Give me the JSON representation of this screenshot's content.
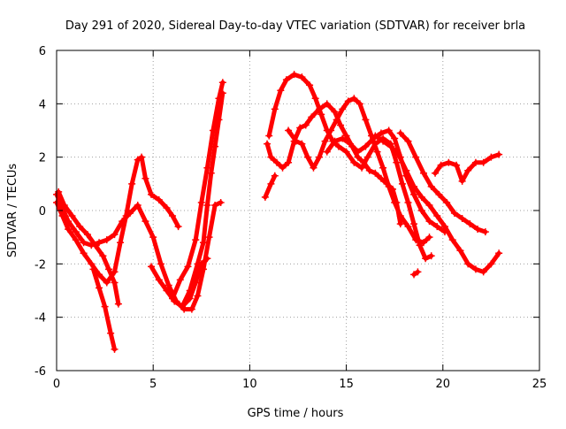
{
  "chart_data": {
    "type": "scatter",
    "title": "Day 291 of 2020, Sidereal Day-to-day VTEC variation (SDTVAR) for receiver brla",
    "xlabel": "GPS time / hours",
    "ylabel": "SDTVAR / TECUs",
    "xlim": [
      0,
      25
    ],
    "ylim": [
      -6,
      6
    ],
    "x_ticks": [
      0,
      5,
      10,
      15,
      20,
      25
    ],
    "y_ticks": [
      -6,
      -4,
      -2,
      0,
      2,
      4,
      6
    ],
    "grid": true,
    "legend": "none",
    "marker": "+",
    "series_color": "#ff0000",
    "series": [
      {
        "name": "track-1",
        "points": [
          [
            0.0,
            0.6
          ],
          [
            0.3,
            0.1
          ],
          [
            0.6,
            -0.4
          ],
          [
            1.0,
            -0.8
          ],
          [
            1.4,
            -1.2
          ],
          [
            1.8,
            -1.3
          ],
          [
            2.2,
            -1.2
          ],
          [
            2.6,
            -1.1
          ],
          [
            3.0,
            -0.9
          ],
          [
            3.4,
            -0.4
          ],
          [
            3.8,
            -0.1
          ],
          [
            4.2,
            0.2
          ],
          [
            4.6,
            -0.4
          ],
          [
            5.0,
            -1.0
          ],
          [
            5.4,
            -2.0
          ],
          [
            5.8,
            -2.8
          ],
          [
            6.2,
            -3.4
          ],
          [
            6.6,
            -3.7
          ],
          [
            7.0,
            -3.7
          ],
          [
            7.3,
            -3.2
          ],
          [
            7.6,
            -2.2
          ],
          [
            7.9,
            -1.0
          ],
          [
            8.2,
            0.2
          ],
          [
            8.5,
            0.3
          ]
        ]
      },
      {
        "name": "track-2",
        "points": [
          [
            0.0,
            0.3
          ],
          [
            0.3,
            -0.2
          ],
          [
            0.6,
            -0.7
          ],
          [
            1.0,
            -1.1
          ],
          [
            1.4,
            -1.6
          ],
          [
            1.8,
            -2.0
          ],
          [
            2.2,
            -2.4
          ],
          [
            2.6,
            -2.7
          ],
          [
            3.0,
            -2.3
          ],
          [
            3.3,
            -1.2
          ],
          [
            3.6,
            -0.2
          ],
          [
            3.9,
            1.0
          ],
          [
            4.2,
            1.9
          ],
          [
            4.4,
            2.0
          ],
          [
            4.6,
            1.2
          ],
          [
            4.9,
            0.6
          ],
          [
            5.3,
            0.4
          ],
          [
            5.7,
            0.1
          ],
          [
            6.0,
            -0.2
          ],
          [
            6.3,
            -0.6
          ]
        ]
      },
      {
        "name": "track-3",
        "points": [
          [
            0.1,
            0.7
          ],
          [
            0.4,
            0.2
          ],
          [
            0.8,
            -0.2
          ],
          [
            1.2,
            -0.6
          ],
          [
            1.6,
            -0.9
          ],
          [
            2.0,
            -1.3
          ],
          [
            2.4,
            -1.7
          ],
          [
            2.7,
            -2.2
          ],
          [
            3.0,
            -2.7
          ],
          [
            3.2,
            -3.5
          ]
        ]
      },
      {
        "name": "track-4",
        "points": [
          [
            1.9,
            -2.2
          ],
          [
            2.2,
            -2.9
          ],
          [
            2.5,
            -3.6
          ],
          [
            2.8,
            -4.6
          ],
          [
            3.0,
            -5.2
          ]
        ]
      },
      {
        "name": "track-5",
        "points": [
          [
            4.9,
            -2.1
          ],
          [
            5.3,
            -2.6
          ],
          [
            5.7,
            -3.0
          ],
          [
            6.1,
            -3.4
          ],
          [
            6.5,
            -3.6
          ],
          [
            6.9,
            -3.3
          ],
          [
            7.2,
            -2.7
          ],
          [
            7.5,
            -2.0
          ],
          [
            7.8,
            -1.8
          ]
        ]
      },
      {
        "name": "track-6",
        "points": [
          [
            6.0,
            -3.3
          ],
          [
            6.4,
            -2.6
          ],
          [
            6.8,
            -2.1
          ],
          [
            7.2,
            -1.1
          ],
          [
            7.5,
            0.3
          ],
          [
            7.8,
            1.6
          ],
          [
            8.1,
            3.0
          ],
          [
            8.4,
            4.2
          ],
          [
            8.6,
            4.8
          ]
        ]
      },
      {
        "name": "track-7",
        "points": [
          [
            6.5,
            -3.6
          ],
          [
            6.9,
            -3.0
          ],
          [
            7.3,
            -2.0
          ],
          [
            7.6,
            -1.2
          ],
          [
            7.8,
            0.2
          ],
          [
            8.0,
            1.4
          ],
          [
            8.2,
            2.4
          ],
          [
            8.4,
            3.4
          ],
          [
            8.6,
            4.4
          ]
        ]
      },
      {
        "name": "track-8",
        "points": [
          [
            10.8,
            0.5
          ],
          [
            11.1,
            1.0
          ],
          [
            11.3,
            1.3
          ]
        ]
      },
      {
        "name": "track-9",
        "points": [
          [
            10.9,
            2.5
          ],
          [
            11.1,
            2.0
          ],
          [
            11.4,
            1.8
          ],
          [
            11.7,
            1.6
          ],
          [
            12.0,
            1.8
          ],
          [
            12.3,
            2.6
          ],
          [
            12.6,
            3.1
          ],
          [
            12.9,
            3.2
          ],
          [
            13.2,
            3.5
          ],
          [
            13.6,
            3.8
          ],
          [
            14.0,
            4.0
          ],
          [
            14.4,
            3.7
          ],
          [
            14.7,
            3.2
          ],
          [
            15.0,
            2.8
          ],
          [
            15.3,
            2.4
          ],
          [
            15.6,
            2.0
          ],
          [
            15.9,
            1.8
          ],
          [
            16.2,
            1.5
          ],
          [
            16.5,
            1.4
          ],
          [
            16.8,
            1.2
          ],
          [
            17.1,
            1.0
          ],
          [
            17.4,
            0.8
          ],
          [
            17.6,
            0.3
          ],
          [
            17.8,
            -0.5
          ]
        ]
      },
      {
        "name": "track-10",
        "points": [
          [
            11.0,
            2.8
          ],
          [
            11.3,
            3.8
          ],
          [
            11.6,
            4.5
          ],
          [
            11.9,
            4.9
          ],
          [
            12.3,
            5.1
          ],
          [
            12.7,
            5.0
          ],
          [
            13.1,
            4.7
          ],
          [
            13.4,
            4.2
          ],
          [
            13.7,
            3.6
          ],
          [
            14.0,
            3.0
          ],
          [
            14.3,
            2.6
          ],
          [
            14.6,
            2.4
          ],
          [
            15.0,
            2.2
          ],
          [
            15.4,
            1.8
          ],
          [
            15.8,
            1.6
          ],
          [
            16.1,
            2.0
          ],
          [
            16.5,
            2.5
          ],
          [
            16.9,
            2.7
          ],
          [
            17.3,
            2.5
          ],
          [
            17.6,
            1.8
          ],
          [
            17.9,
            1.0
          ],
          [
            18.2,
            0.3
          ],
          [
            18.5,
            -0.5
          ],
          [
            18.8,
            -1.3
          ],
          [
            19.1,
            -1.8
          ],
          [
            19.4,
            -1.7
          ]
        ]
      },
      {
        "name": "track-11",
        "points": [
          [
            12.0,
            3.0
          ],
          [
            12.4,
            2.6
          ],
          [
            12.7,
            2.5
          ],
          [
            13.0,
            2.0
          ],
          [
            13.3,
            1.6
          ],
          [
            13.6,
            2.0
          ],
          [
            13.9,
            2.6
          ],
          [
            14.2,
            3.0
          ],
          [
            14.5,
            3.4
          ],
          [
            14.8,
            3.8
          ],
          [
            15.1,
            4.1
          ],
          [
            15.4,
            4.2
          ],
          [
            15.7,
            4.0
          ],
          [
            16.0,
            3.4
          ],
          [
            16.3,
            2.8
          ],
          [
            16.6,
            2.2
          ],
          [
            16.9,
            1.6
          ],
          [
            17.2,
            0.9
          ],
          [
            17.5,
            0.3
          ],
          [
            17.8,
            -0.2
          ],
          [
            18.2,
            -0.6
          ],
          [
            18.6,
            -1.1
          ],
          [
            19.0,
            -1.2
          ],
          [
            19.3,
            -1.0
          ]
        ]
      },
      {
        "name": "track-12",
        "points": [
          [
            14.0,
            2.2
          ],
          [
            14.4,
            2.6
          ],
          [
            14.8,
            2.7
          ],
          [
            15.2,
            2.5
          ],
          [
            15.6,
            2.2
          ],
          [
            16.0,
            2.4
          ],
          [
            16.4,
            2.7
          ],
          [
            16.8,
            2.9
          ],
          [
            17.2,
            3.0
          ],
          [
            17.5,
            2.7
          ],
          [
            17.8,
            2.0
          ],
          [
            18.1,
            1.3
          ],
          [
            18.5,
            0.6
          ],
          [
            18.9,
            0.0
          ],
          [
            19.3,
            -0.4
          ],
          [
            19.7,
            -0.6
          ],
          [
            20.1,
            -0.8
          ]
        ]
      },
      {
        "name": "track-13",
        "points": [
          [
            16.5,
            2.8
          ],
          [
            16.9,
            2.6
          ],
          [
            17.3,
            2.4
          ],
          [
            17.7,
            2.1
          ],
          [
            18.1,
            1.5
          ],
          [
            18.5,
            0.9
          ],
          [
            18.9,
            0.5
          ],
          [
            19.3,
            0.2
          ],
          [
            19.7,
            -0.2
          ],
          [
            20.1,
            -0.6
          ],
          [
            20.5,
            -1.1
          ],
          [
            20.9,
            -1.5
          ],
          [
            21.3,
            -2.0
          ],
          [
            21.7,
            -2.2
          ],
          [
            22.1,
            -2.3
          ],
          [
            22.5,
            -2.0
          ],
          [
            22.9,
            -1.6
          ]
        ]
      },
      {
        "name": "track-14",
        "points": [
          [
            18.5,
            -2.4
          ],
          [
            18.7,
            -2.3
          ]
        ]
      },
      {
        "name": "track-15",
        "points": [
          [
            17.8,
            2.9
          ],
          [
            18.2,
            2.6
          ],
          [
            18.6,
            2.0
          ],
          [
            19.0,
            1.4
          ],
          [
            19.4,
            0.9
          ],
          [
            19.8,
            0.6
          ],
          [
            20.2,
            0.3
          ],
          [
            20.6,
            -0.1
          ],
          [
            21.0,
            -0.3
          ],
          [
            21.4,
            -0.5
          ],
          [
            21.8,
            -0.7
          ],
          [
            22.2,
            -0.8
          ]
        ]
      },
      {
        "name": "track-16",
        "points": [
          [
            19.6,
            1.4
          ],
          [
            19.9,
            1.7
          ],
          [
            20.3,
            1.8
          ],
          [
            20.7,
            1.7
          ],
          [
            21.0,
            1.1
          ],
          [
            21.3,
            1.5
          ],
          [
            21.7,
            1.8
          ],
          [
            22.1,
            1.8
          ],
          [
            22.5,
            2.0
          ],
          [
            22.9,
            2.1
          ]
        ]
      }
    ]
  }
}
